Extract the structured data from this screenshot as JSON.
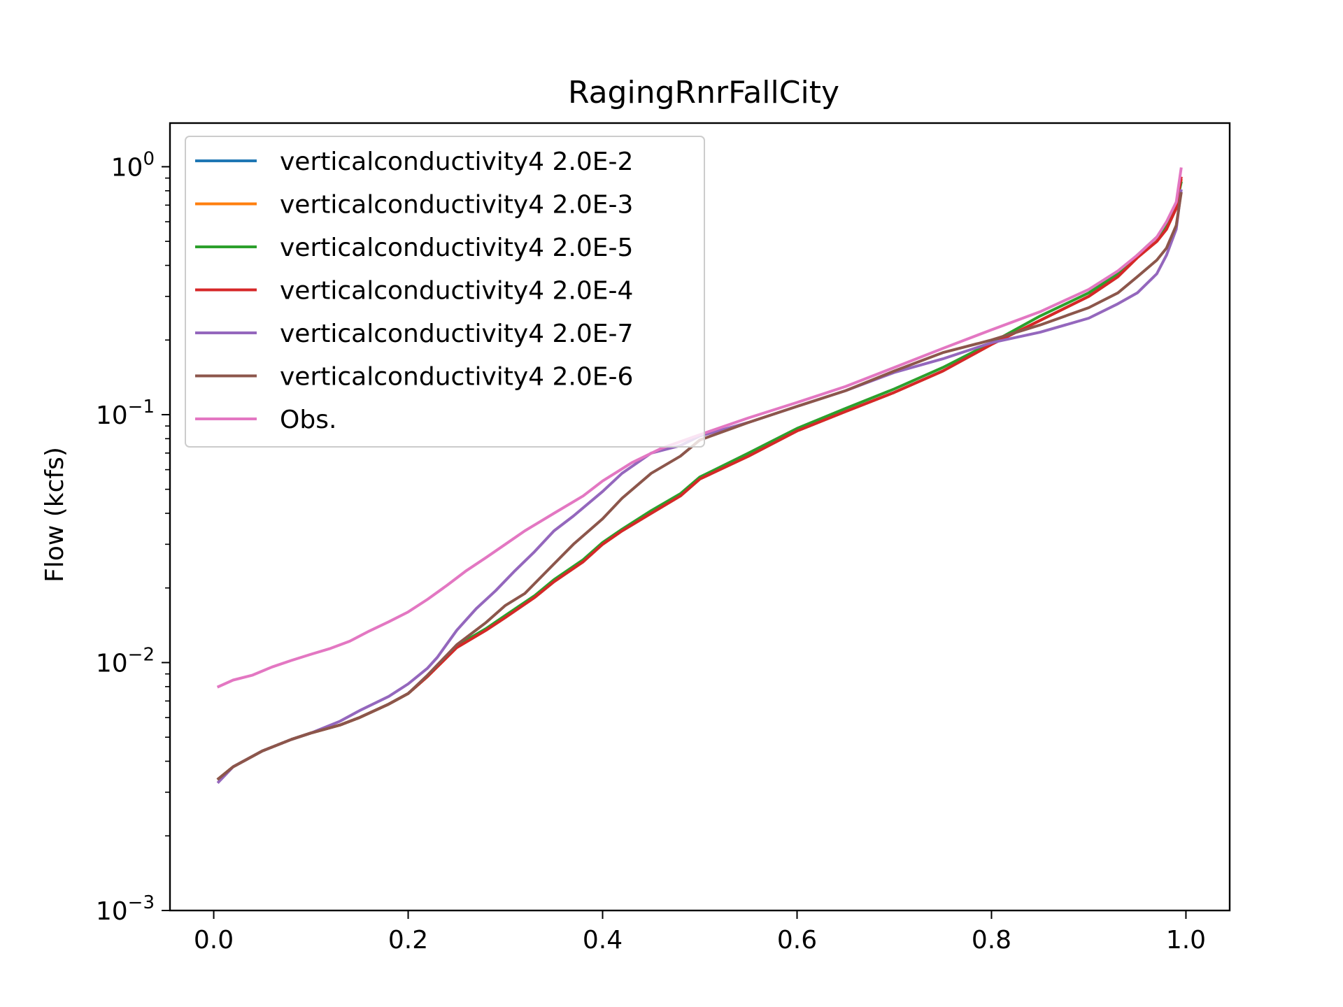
{
  "chart_data": {
    "type": "line",
    "title": "RagingRnrFallCity",
    "xlabel": "",
    "ylabel": "Flow (kcfs)",
    "yscale": "log",
    "xlim": [
      -0.045,
      1.045
    ],
    "ylim": [
      0.001,
      1.5
    ],
    "xticks": [
      {
        "value": 0.0,
        "label": "0.0"
      },
      {
        "value": 0.2,
        "label": "0.2"
      },
      {
        "value": 0.4,
        "label": "0.4"
      },
      {
        "value": 0.6,
        "label": "0.6"
      },
      {
        "value": 0.8,
        "label": "0.8"
      },
      {
        "value": 1.0,
        "label": "1.0"
      }
    ],
    "yticks": [
      {
        "value": 0.001,
        "base": "10",
        "exp": "−3"
      },
      {
        "value": 0.01,
        "base": "10",
        "exp": "−2"
      },
      {
        "value": 0.1,
        "base": "10",
        "exp": "−1"
      },
      {
        "value": 1.0,
        "base": "10",
        "exp": "0"
      }
    ],
    "legend_position": "top-left",
    "grid": false,
    "series": [
      {
        "name": "verticalconductivity4 2.0E-2",
        "color": "#1f77b4",
        "x": [
          0.005,
          0.02,
          0.05,
          0.08,
          0.1,
          0.13,
          0.15,
          0.18,
          0.2,
          0.22,
          0.25,
          0.28,
          0.3,
          0.33,
          0.35,
          0.38,
          0.4,
          0.42,
          0.45,
          0.48,
          0.5,
          0.55,
          0.6,
          0.65,
          0.7,
          0.75,
          0.8,
          0.85,
          0.9,
          0.93,
          0.95,
          0.97,
          0.98,
          0.99,
          0.995
        ],
        "y": [
          0.0034,
          0.0038,
          0.0044,
          0.0049,
          0.0052,
          0.0056,
          0.006,
          0.0068,
          0.0075,
          0.0088,
          0.0115,
          0.0135,
          0.0152,
          0.0183,
          0.0212,
          0.0255,
          0.03,
          0.034,
          0.04,
          0.047,
          0.055,
          0.068,
          0.086,
          0.103,
          0.123,
          0.15,
          0.192,
          0.24,
          0.3,
          0.36,
          0.43,
          0.5,
          0.56,
          0.68,
          0.88
        ]
      },
      {
        "name": "verticalconductivity4 2.0E-3",
        "color": "#ff7f0e",
        "x": [
          0.005,
          0.02,
          0.05,
          0.08,
          0.1,
          0.13,
          0.15,
          0.18,
          0.2,
          0.22,
          0.25,
          0.28,
          0.3,
          0.33,
          0.35,
          0.38,
          0.4,
          0.42,
          0.45,
          0.48,
          0.5,
          0.55,
          0.6,
          0.65,
          0.7,
          0.75,
          0.8,
          0.85,
          0.9,
          0.93,
          0.95,
          0.97,
          0.98,
          0.99,
          0.995
        ],
        "y": [
          0.0034,
          0.0038,
          0.0044,
          0.0049,
          0.0052,
          0.0056,
          0.006,
          0.0068,
          0.0075,
          0.0088,
          0.0115,
          0.0135,
          0.0152,
          0.0183,
          0.0212,
          0.0255,
          0.03,
          0.034,
          0.04,
          0.047,
          0.055,
          0.068,
          0.086,
          0.103,
          0.123,
          0.15,
          0.192,
          0.24,
          0.3,
          0.36,
          0.43,
          0.5,
          0.56,
          0.68,
          0.88
        ]
      },
      {
        "name": "verticalconductivity4 2.0E-5",
        "color": "#2ca02c",
        "x": [
          0.005,
          0.02,
          0.05,
          0.08,
          0.1,
          0.13,
          0.15,
          0.18,
          0.2,
          0.22,
          0.25,
          0.28,
          0.3,
          0.33,
          0.35,
          0.38,
          0.4,
          0.42,
          0.45,
          0.48,
          0.5,
          0.55,
          0.6,
          0.65,
          0.7,
          0.75,
          0.8,
          0.85,
          0.9,
          0.93,
          0.95,
          0.97,
          0.98,
          0.99,
          0.995
        ],
        "y": [
          0.0034,
          0.0038,
          0.0044,
          0.0049,
          0.0052,
          0.0056,
          0.006,
          0.0068,
          0.0075,
          0.0088,
          0.0117,
          0.0137,
          0.0155,
          0.0186,
          0.0216,
          0.026,
          0.0305,
          0.0345,
          0.041,
          0.048,
          0.056,
          0.07,
          0.088,
          0.106,
          0.127,
          0.155,
          0.195,
          0.25,
          0.31,
          0.37,
          0.44,
          0.52,
          0.58,
          0.7,
          0.86
        ]
      },
      {
        "name": "verticalconductivity4 2.0E-4",
        "color": "#d62728",
        "x": [
          0.005,
          0.02,
          0.05,
          0.08,
          0.1,
          0.13,
          0.15,
          0.18,
          0.2,
          0.22,
          0.25,
          0.28,
          0.3,
          0.33,
          0.35,
          0.38,
          0.4,
          0.42,
          0.45,
          0.48,
          0.5,
          0.55,
          0.6,
          0.65,
          0.7,
          0.75,
          0.8,
          0.85,
          0.9,
          0.93,
          0.95,
          0.97,
          0.98,
          0.99,
          0.995
        ],
        "y": [
          0.0034,
          0.0038,
          0.0044,
          0.0049,
          0.0052,
          0.0056,
          0.006,
          0.0068,
          0.0075,
          0.0088,
          0.0115,
          0.0135,
          0.0152,
          0.0183,
          0.0212,
          0.0255,
          0.03,
          0.034,
          0.04,
          0.047,
          0.055,
          0.068,
          0.086,
          0.103,
          0.123,
          0.15,
          0.192,
          0.24,
          0.3,
          0.36,
          0.43,
          0.5,
          0.56,
          0.68,
          0.9
        ]
      },
      {
        "name": "verticalconductivity4 2.0E-7",
        "color": "#9467bd",
        "x": [
          0.005,
          0.02,
          0.05,
          0.08,
          0.1,
          0.13,
          0.15,
          0.18,
          0.2,
          0.22,
          0.23,
          0.25,
          0.27,
          0.29,
          0.31,
          0.33,
          0.35,
          0.37,
          0.4,
          0.42,
          0.45,
          0.48,
          0.5,
          0.55,
          0.6,
          0.65,
          0.7,
          0.75,
          0.8,
          0.85,
          0.9,
          0.93,
          0.95,
          0.97,
          0.98,
          0.99,
          0.995
        ],
        "y": [
          0.0033,
          0.0038,
          0.0044,
          0.0049,
          0.0052,
          0.0058,
          0.0064,
          0.0073,
          0.0082,
          0.0095,
          0.0105,
          0.0135,
          0.0165,
          0.0195,
          0.0235,
          0.028,
          0.034,
          0.039,
          0.049,
          0.058,
          0.07,
          0.075,
          0.082,
          0.093,
          0.108,
          0.125,
          0.148,
          0.168,
          0.195,
          0.215,
          0.245,
          0.28,
          0.31,
          0.37,
          0.44,
          0.56,
          0.8
        ]
      },
      {
        "name": "verticalconductivity4 2.0E-6",
        "color": "#8c564b",
        "x": [
          0.005,
          0.02,
          0.05,
          0.08,
          0.1,
          0.13,
          0.15,
          0.18,
          0.2,
          0.22,
          0.25,
          0.28,
          0.3,
          0.32,
          0.35,
          0.37,
          0.4,
          0.42,
          0.45,
          0.48,
          0.5,
          0.55,
          0.6,
          0.65,
          0.7,
          0.75,
          0.8,
          0.85,
          0.9,
          0.93,
          0.95,
          0.97,
          0.98,
          0.99,
          0.995
        ],
        "y": [
          0.0034,
          0.0038,
          0.0044,
          0.0049,
          0.0052,
          0.0056,
          0.006,
          0.0068,
          0.0075,
          0.0089,
          0.0118,
          0.0145,
          0.017,
          0.019,
          0.025,
          0.03,
          0.038,
          0.046,
          0.058,
          0.068,
          0.079,
          0.093,
          0.108,
          0.125,
          0.15,
          0.178,
          0.2,
          0.23,
          0.27,
          0.31,
          0.36,
          0.42,
          0.47,
          0.58,
          0.78
        ]
      },
      {
        "name": "Obs.",
        "color": "#e377c2",
        "x": [
          0.005,
          0.02,
          0.04,
          0.06,
          0.08,
          0.1,
          0.12,
          0.14,
          0.16,
          0.18,
          0.2,
          0.22,
          0.24,
          0.26,
          0.28,
          0.3,
          0.32,
          0.35,
          0.38,
          0.4,
          0.43,
          0.46,
          0.5,
          0.55,
          0.6,
          0.65,
          0.7,
          0.75,
          0.8,
          0.85,
          0.9,
          0.93,
          0.95,
          0.97,
          0.98,
          0.99,
          0.995
        ],
        "y": [
          0.008,
          0.0085,
          0.0089,
          0.0096,
          0.0102,
          0.0108,
          0.0114,
          0.0122,
          0.0134,
          0.0146,
          0.016,
          0.018,
          0.0205,
          0.0235,
          0.0265,
          0.03,
          0.034,
          0.04,
          0.047,
          0.054,
          0.064,
          0.073,
          0.083,
          0.097,
          0.112,
          0.13,
          0.155,
          0.185,
          0.22,
          0.26,
          0.32,
          0.38,
          0.44,
          0.52,
          0.6,
          0.72,
          0.98
        ]
      }
    ]
  }
}
